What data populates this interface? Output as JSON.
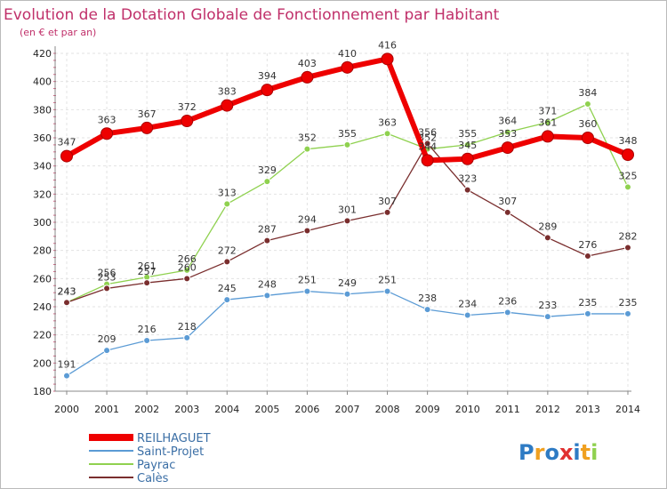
{
  "chart_data": {
    "type": "line",
    "title": "Evolution de la Dotation Globale de Fonctionnement par Habitant",
    "subtitle": "(en € et par an)",
    "categories": [
      "2000",
      "2001",
      "2002",
      "2003",
      "2004",
      "2005",
      "2006",
      "2007",
      "2008",
      "2009",
      "2010",
      "2011",
      "2012",
      "2013",
      "2014"
    ],
    "ylim": [
      180,
      420
    ],
    "yticks": [
      "180",
      "200",
      "220",
      "240",
      "260",
      "280",
      "300",
      "320",
      "340",
      "360",
      "380",
      "400",
      "420"
    ],
    "series": [
      {
        "name": "Saint-Projet",
        "color": "#5b9bd5",
        "values": [
          191,
          209,
          216,
          218,
          245,
          248,
          251,
          249,
          251,
          238,
          234,
          236,
          233,
          235,
          235
        ]
      },
      {
        "name": "Payrac",
        "color": "#8fd14f",
        "values": [
          243,
          256,
          261,
          266,
          313,
          329,
          352,
          355,
          363,
          352,
          355,
          364,
          371,
          384,
          325
        ]
      },
      {
        "name": "Calès",
        "color": "#7a2e2e",
        "values": [
          243,
          253,
          257,
          260,
          272,
          287,
          294,
          301,
          307,
          356,
          323,
          307,
          289,
          276,
          282
        ]
      },
      {
        "name": "REILHAGUET",
        "color": "#ee0000",
        "values": [
          347,
          363,
          367,
          372,
          383,
          394,
          403,
          410,
          416,
          344,
          345,
          353,
          361,
          360,
          348
        ]
      }
    ],
    "legend": [
      "REILHAGUET",
      "Saint-Projet",
      "Payrac",
      "Calès"
    ]
  },
  "logo": {
    "text": "Proxiti",
    "letters": [
      "P",
      "r",
      "o",
      "x",
      "i",
      "t",
      "i"
    ],
    "colors": [
      "#2e7bc4",
      "#f0a020",
      "#2e7bc4",
      "#e03030",
      "#2e7bc4",
      "#f0a020",
      "#8fd14f"
    ]
  }
}
